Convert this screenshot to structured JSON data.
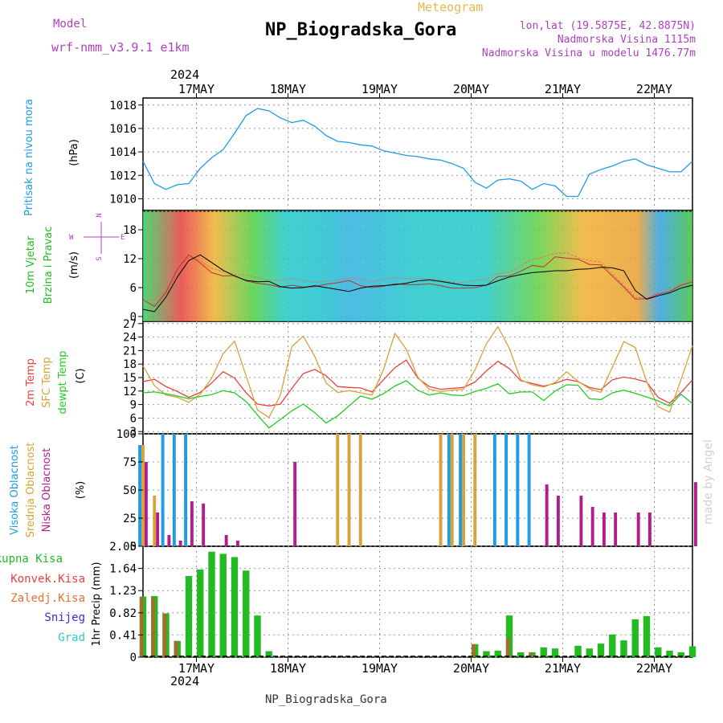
{
  "header": {
    "model_label": "Model",
    "model_name": "wrf-nmm_v3.9.1 e1km",
    "station": "NP_Biogradska_Gora",
    "meteogram": "Meteogram",
    "lonlat": "lon,lat (19.5875E, 42.8875N)",
    "altitude": "Nadmorska Visina 1115m",
    "model_altitude": "Nadmorska Visina u modelu 1476.77m",
    "footer": "NP_Biogradska_Gora",
    "watermark": "made by Angel"
  },
  "colors": {
    "pressure": "#1e9be6",
    "wind_label": "#22bb22",
    "temp_2m": "#e84040",
    "temp_sfc": "#d8a23a",
    "temp_dew": "#22cc22",
    "cloud_high": "#1e9be6",
    "cloud_mid": "#d8a23a",
    "cloud_low": "#b01e8c",
    "precip_total": "#22bb22",
    "precip_conv": "#e84040",
    "precip_frz": "#e87030",
    "precip_snow": "#3030e0",
    "precip_hail": "#30c8c8",
    "axis_label_purple": "#b040c0"
  },
  "chart_data": {
    "type": "meteogram",
    "year": "2024",
    "date_labels": [
      "17MAY",
      "18MAY",
      "19MAY",
      "20MAY",
      "21MAY",
      "22MAY"
    ],
    "x_hours": [
      0,
      3,
      6,
      9,
      12,
      15,
      18,
      21,
      24,
      27,
      30,
      33,
      36,
      39,
      42,
      45,
      48,
      51,
      54,
      57,
      60,
      63,
      66,
      69,
      72,
      75,
      78,
      81,
      84,
      87,
      90,
      93,
      96,
      99,
      102,
      105,
      108,
      111,
      114,
      117,
      120,
      123,
      126,
      129,
      132,
      135,
      138,
      141,
      144
    ],
    "panels": [
      {
        "id": "pressure",
        "labels": [
          "Pritisak na nivou mora"
        ],
        "unit": "(hPa)",
        "yticks": [
          "1010",
          "1012",
          "1014",
          "1016",
          "1018"
        ],
        "ylim": [
          1009,
          1018.6
        ],
        "series": [
          {
            "name": "Pritisak na nivou mora",
            "values": [
              1013.2,
              1011.3,
              1010.8,
              1011.2,
              1011.3,
              1012.6,
              1013.5,
              1014.2,
              1015.6,
              1017.1,
              1017.7,
              1017.5,
              1016.9,
              1016.5,
              1016.7,
              1016.2,
              1015.4,
              1014.9,
              1014.8,
              1014.6,
              1014.5,
              1014.1,
              1013.9,
              1013.7,
              1013.6,
              1013.4,
              1013.3,
              1013.0,
              1012.6,
              1011.4,
              1010.9,
              1011.6,
              1011.7,
              1011.5,
              1010.8,
              1011.3,
              1011.1,
              1010.2,
              1010.2,
              1012.1,
              1012.5,
              1012.8,
              1013.2,
              1013.4,
              1012.9,
              1012.6,
              1012.3,
              1012.3,
              1013.2
            ]
          }
        ]
      },
      {
        "id": "wind",
        "labels": [
          "10m Vjetar",
          "Brzina i Pravac"
        ],
        "unit": "(m/s)",
        "compass": [
          "N",
          "W",
          "E",
          "S"
        ],
        "yticks": [
          "0",
          "6",
          "12",
          "18"
        ],
        "ylim": [
          -1,
          22
        ],
        "series": [
          {
            "name": "speed",
            "values": [
              3.5,
              2.1,
              5.0,
              9.8,
              12.8,
              11.1,
              9.1,
              8.4,
              8.5,
              7.4,
              6.9,
              6.6,
              6.1,
              6.5,
              6.1,
              6.2,
              6.7,
              7.0,
              7.5,
              6.4,
              6.0,
              6.3,
              6.8,
              6.6,
              6.6,
              6.8,
              6.4,
              5.9,
              5.9,
              6.0,
              6.5,
              8.3,
              8.4,
              9.4,
              10.6,
              10.3,
              12.4,
              12.1,
              11.9,
              10.8,
              10.7,
              8.4,
              6.1,
              3.6,
              3.7,
              4.6,
              5.2,
              6.5,
              7.2
            ]
          },
          {
            "name": "gust",
            "values": [
              3.2,
              3.5,
              5.5,
              11.0,
              13.0,
              11.5,
              10.0,
              9.3,
              8.8,
              8.6,
              8.1,
              7.5,
              7.5,
              7.9,
              7.5,
              7.1,
              7.3,
              7.6,
              8.0,
              7.8,
              7.2,
              7.7,
              8.1,
              7.8,
              7.9,
              7.8,
              7.6,
              7.1,
              7.0,
              7.5,
              7.8,
              8.9,
              9.2,
              10.5,
              11.8,
              12.4,
              13.1,
              13.2,
              12.2,
              11.6,
              11.3,
              8.9,
              6.5,
              4.0,
              3.8,
              4.9,
              5.9,
              6.8,
              8.0
            ]
          },
          {
            "name": "mean",
            "values": [
              1.5,
              1.0,
              4.0,
              8.2,
              11.6,
              12.8,
              11.2,
              9.6,
              8.4,
              7.5,
              7.2,
              7.3,
              6.2,
              5.9,
              6.0,
              6.4,
              6.0,
              5.6,
              5.2,
              5.9,
              6.3,
              6.4,
              6.6,
              6.9,
              7.4,
              7.6,
              7.3,
              6.9,
              6.5,
              6.4,
              6.5,
              7.4,
              8.2,
              8.7,
              9.1,
              9.3,
              9.5,
              9.5,
              9.8,
              9.9,
              10.2,
              10.1,
              9.5,
              5.4,
              3.6,
              4.3,
              4.9,
              5.9,
              6.5
            ]
          }
        ]
      },
      {
        "id": "temperature",
        "labels": [
          "2m Temp",
          "SFC Temp",
          "dewpt Temp"
        ],
        "unit": "(C)",
        "yticks": [
          "3",
          "6",
          "9",
          "12",
          "15",
          "18",
          "21",
          "24",
          "27"
        ],
        "ylim": [
          2.5,
          27.5
        ],
        "series": [
          {
            "name": "2m Temp",
            "values": [
              14.1,
              14.6,
              13.0,
              11.9,
              10.6,
              11.7,
              13.8,
              16.3,
              14.9,
              11.6,
              9.1,
              8.7,
              9.1,
              12.6,
              15.9,
              16.8,
              15.4,
              13.0,
              12.8,
              12.7,
              11.8,
              14.5,
              17.2,
              18.9,
              14.9,
              13.0,
              12.4,
              12.6,
              12.8,
              14.0,
              16.5,
              18.6,
              17.0,
              14.3,
              13.7,
              13.1,
              13.7,
              14.6,
              14.1,
              12.8,
              12.3,
              14.5,
              15.1,
              14.7,
              14.0,
              10.6,
              9.3,
              11.7,
              14.5
            ]
          },
          {
            "name": "SFC Temp",
            "values": [
              17.6,
              13.2,
              11.1,
              10.6,
              9.5,
              11.3,
              14.9,
              20.3,
              23.1,
              15.4,
              7.8,
              6.1,
              11.1,
              21.9,
              24.2,
              19.7,
              13.8,
              11.7,
              12.1,
              11.6,
              11.1,
              16.7,
              24.8,
              21.3,
              15.1,
              12.4,
              11.9,
              12.2,
              12.4,
              16.7,
              22.5,
              26.3,
              21.5,
              14.5,
              13.4,
              12.9,
              13.9,
              16.3,
              14.2,
              12.5,
              11.7,
              17.3,
              23.0,
              21.7,
              14.1,
              8.5,
              7.3,
              14.6,
              22.1
            ]
          },
          {
            "name": "dewpt Temp",
            "values": [
              11.6,
              11.8,
              11.4,
              10.9,
              10.3,
              10.8,
              11.2,
              12.1,
              11.6,
              9.7,
              6.7,
              3.8,
              5.7,
              7.6,
              9.1,
              7.2,
              4.9,
              6.5,
              8.7,
              10.9,
              10.2,
              11.4,
              13.1,
              14.3,
              12.2,
              11.1,
              11.6,
              11.1,
              11.0,
              11.9,
              12.6,
              13.6,
              11.4,
              11.8,
              11.8,
              9.9,
              12.0,
              13.4,
              13.3,
              10.3,
              10.1,
              11.6,
              12.2,
              11.5,
              10.7,
              9.8,
              8.7,
              11.3,
              9.2
            ]
          }
        ]
      },
      {
        "id": "clouds",
        "labels": [
          "Visoka Oblacnost",
          "Srednja Oblacnost",
          "Niska Oblacnost"
        ],
        "unit": "(%)",
        "yticks": [
          "0",
          "25",
          "50",
          "75",
          "100"
        ],
        "ylim": [
          0,
          100
        ],
        "series": [
          {
            "name": "Visoka Oblacnost",
            "values": [
              90,
              0,
              100,
              100,
              100,
              0,
              0,
              0,
              0,
              0,
              0,
              0,
              0,
              0,
              0,
              0,
              0,
              0,
              0,
              0,
              0,
              0,
              0,
              0,
              0,
              0,
              0,
              100,
              100,
              0,
              0,
              100,
              100,
              100,
              100,
              0,
              0,
              0,
              0,
              0,
              0,
              0,
              0,
              0,
              0,
              0,
              0,
              0,
              0
            ]
          },
          {
            "name": "Srednja Oblacnost",
            "values": [
              90,
              45,
              0,
              0,
              0,
              0,
              0,
              0,
              0,
              0,
              0,
              0,
              0,
              0,
              0,
              0,
              0,
              100,
              100,
              100,
              0,
              0,
              0,
              0,
              0,
              0,
              100,
              100,
              100,
              100,
              0,
              0,
              0,
              0,
              0,
              0,
              0,
              0,
              0,
              0,
              0,
              0,
              0,
              0,
              0,
              0,
              0,
              0,
              0
            ]
          },
          {
            "name": "Niska Oblacnost",
            "values": [
              75,
              30,
              10,
              5,
              40,
              38,
              0,
              10,
              5,
              0,
              0,
              0,
              0,
              75,
              0,
              0,
              0,
              0,
              0,
              0,
              0,
              0,
              0,
              0,
              0,
              0,
              0,
              0,
              0,
              0,
              0,
              0,
              0,
              0,
              0,
              55,
              45,
              0,
              45,
              35,
              30,
              30,
              0,
              30,
              30,
              0,
              0,
              0,
              57
            ]
          }
        ]
      },
      {
        "id": "precip",
        "labels": [
          "Ukupna Kisa",
          "Konvek.Kisa",
          "Zaledj.Kisa",
          "Snijeg",
          "Grad"
        ],
        "unit": "1hr Precip (mm)",
        "yticks": [
          "0",
          "0.41",
          "0.82",
          "1.23",
          "1.64",
          "2.05"
        ],
        "ylim": [
          0,
          2.05
        ],
        "series": [
          {
            "name": "Ukupna Kisa",
            "values": [
              1.12,
              1.13,
              0.81,
              0.3,
              1.5,
              1.62,
              1.95,
              1.91,
              1.85,
              1.6,
              0.77,
              0.11,
              0.0,
              0.0,
              0.0,
              0.0,
              0.0,
              0.0,
              0.0,
              0.0,
              0.0,
              0.0,
              0.0,
              0.0,
              0.0,
              0.0,
              0.0,
              0.0,
              0.0,
              0.24,
              0.11,
              0.12,
              0.77,
              0.09,
              0.09,
              0.18,
              0.16,
              0.0,
              0.21,
              0.16,
              0.25,
              0.42,
              0.31,
              0.7,
              0.76,
              0.18,
              0.12,
              0.09,
              0.2
            ]
          },
          {
            "name": "Konvek.Kisa",
            "values": [
              1.1,
              1.1,
              0.8,
              0.3,
              0,
              0,
              0,
              0,
              0,
              0,
              0,
              0,
              0,
              0,
              0,
              0,
              0,
              0,
              0,
              0,
              0,
              0,
              0,
              0,
              0,
              0,
              0,
              0,
              0,
              0.24,
              0,
              0,
              0.35,
              0,
              0.09,
              0,
              0,
              0,
              0,
              0,
              0,
              0,
              0,
              0,
              0,
              0,
              0,
              0,
              0
            ]
          }
        ]
      }
    ]
  }
}
